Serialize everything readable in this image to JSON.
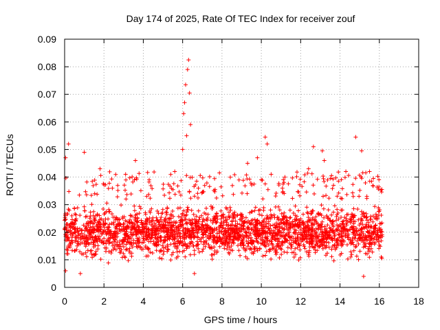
{
  "chart_data": {
    "type": "scatter",
    "title": "Day 174 of 2025, Rate Of TEC Index for receiver zouf",
    "xlabel": "GPS time / hours",
    "ylabel": "ROTI / TECUs",
    "xlim": [
      0,
      18
    ],
    "ylim": [
      0,
      0.09
    ],
    "xticks": [
      "0",
      "2",
      "4",
      "6",
      "8",
      "10",
      "12",
      "14",
      "16",
      "18"
    ],
    "yticks": [
      "0",
      "0.01",
      "0.02",
      "0.03",
      "0.04",
      "0.05",
      "0.06",
      "0.07",
      "0.08",
      "0.09"
    ],
    "grid": true,
    "marker": "+",
    "color": "#ff0000",
    "series": [
      {
        "name": "ROTI",
        "x_range": [
          0,
          16.15
        ],
        "typical_range": [
          0.008,
          0.032
        ],
        "notable_points": [
          {
            "x": 0.05,
            "y": 0.047
          },
          {
            "x": 0.2,
            "y": 0.052
          },
          {
            "x": 0.05,
            "y": 0.006
          },
          {
            "x": 1.0,
            "y": 0.049
          },
          {
            "x": 1.8,
            "y": 0.043
          },
          {
            "x": 3.1,
            "y": 0.041
          },
          {
            "x": 3.6,
            "y": 0.046
          },
          {
            "x": 4.3,
            "y": 0.039
          },
          {
            "x": 5.6,
            "y": 0.042
          },
          {
            "x": 6.0,
            "y": 0.05
          },
          {
            "x": 6.05,
            "y": 0.063
          },
          {
            "x": 6.1,
            "y": 0.067
          },
          {
            "x": 6.15,
            "y": 0.0735
          },
          {
            "x": 6.2,
            "y": 0.055
          },
          {
            "x": 6.25,
            "y": 0.079
          },
          {
            "x": 6.3,
            "y": 0.0825
          },
          {
            "x": 6.35,
            "y": 0.0705
          },
          {
            "x": 6.4,
            "y": 0.059
          },
          {
            "x": 6.6,
            "y": 0.005
          },
          {
            "x": 9.3,
            "y": 0.045
          },
          {
            "x": 9.8,
            "y": 0.047
          },
          {
            "x": 10.2,
            "y": 0.0545
          },
          {
            "x": 10.3,
            "y": 0.052
          },
          {
            "x": 10.5,
            "y": 0.041
          },
          {
            "x": 11.2,
            "y": 0.04
          },
          {
            "x": 12.4,
            "y": 0.043
          },
          {
            "x": 12.65,
            "y": 0.051
          },
          {
            "x": 13.1,
            "y": 0.0495
          },
          {
            "x": 13.2,
            "y": 0.046
          },
          {
            "x": 14.3,
            "y": 0.042
          },
          {
            "x": 14.8,
            "y": 0.0545
          },
          {
            "x": 15.1,
            "y": 0.0495
          },
          {
            "x": 15.5,
            "y": 0.042
          },
          {
            "x": 15.2,
            "y": 0.004
          },
          {
            "x": 0.8,
            "y": 0.005
          },
          {
            "x": 16.1,
            "y": 0.011
          }
        ]
      }
    ]
  }
}
